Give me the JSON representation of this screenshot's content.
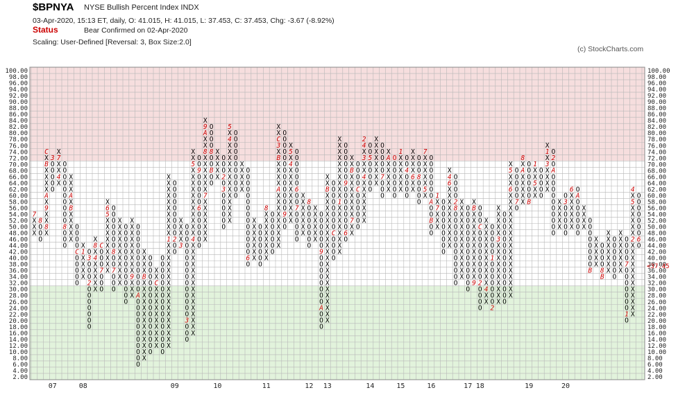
{
  "header": {
    "symbol": "$BPNYA",
    "name": "NYSE Bullish Percent Index  INDX",
    "ohlc_line": "03-Apr-2020, 15:13 ET, daily, O: 41.015, H: 41.015, L: 37.453, C: 37.453, Chg: -3.67 (-8.92%)",
    "status_label": "Status",
    "status_text": "Bear Confirmed on 02-Apr-2020",
    "scaling": "Scaling: User-Defined [Reversal: 3, Box Size:2.0]",
    "copyright": "(c) StockCharts.com"
  },
  "colors": {
    "upper_zone": "#f6dede",
    "middle_zone": "#ffffff",
    "lower_zone": "#e2f3dc",
    "grid": "#b7b7b7",
    "x_mark": "#000000",
    "o_mark": "#000000",
    "month_marker": "#cc0000",
    "last_price": "#cc0000"
  },
  "chart_data": {
    "type": "point_and_figure",
    "box_size": 2.0,
    "reversal": 3,
    "ylim": [
      2,
      100
    ],
    "y_ticks": [
      "100.00",
      "98.00",
      "96.00",
      "94.00",
      "92.00",
      "90.00",
      "88.00",
      "86.00",
      "84.00",
      "82.00",
      "80.00",
      "78.00",
      "76.00",
      "74.00",
      "72.00",
      "70.00",
      "68.00",
      "66.00",
      "64.00",
      "62.00",
      "60.00",
      "58.00",
      "56.00",
      "54.00",
      "52.00",
      "50.00",
      "48.00",
      "46.00",
      "44.00",
      "42.00",
      "40.00",
      "38.00",
      "36.00",
      "34.00",
      "32.00",
      "30.00",
      "28.00",
      "26.00",
      "24.00",
      "22.00",
      "20.00",
      "18.00",
      "16.00",
      "14.00",
      "12.00",
      "10.00",
      "8.00",
      "6.00",
      "4.00",
      "2.00"
    ],
    "zones": [
      {
        "from": 70,
        "to": 100,
        "color": "upper"
      },
      {
        "from": 30,
        "to": 70,
        "color": "middle"
      },
      {
        "from": 2,
        "to": 30,
        "color": "lower"
      }
    ],
    "last_value_label": "37.45",
    "last_value": 37.45,
    "x_labels": [
      {
        "label": "07",
        "col": 3
      },
      {
        "label": "08",
        "col": 8
      },
      {
        "label": "09",
        "col": 23
      },
      {
        "label": "10",
        "col": 30
      },
      {
        "label": "11",
        "col": 38
      },
      {
        "label": "12",
        "col": 45
      },
      {
        "label": "13",
        "col": 48
      },
      {
        "label": "14",
        "col": 55
      },
      {
        "label": "15",
        "col": 60
      },
      {
        "label": "16",
        "col": 65
      },
      {
        "label": "17",
        "col": 71
      },
      {
        "label": "18",
        "col": 73
      },
      {
        "label": "19",
        "col": 81
      },
      {
        "label": "20",
        "col": 87
      }
    ],
    "columns": [
      {
        "t": "X",
        "lo": 48,
        "hi": 54,
        "m": {
          "54": "7"
        }
      },
      {
        "t": "O",
        "lo": 46,
        "hi": 52,
        "m": {
          "52": "8"
        }
      },
      {
        "t": "X",
        "lo": 48,
        "hi": 74,
        "m": {
          "74": "C",
          "70": "B",
          "60": "A",
          "56": "9",
          "50": "8"
        }
      },
      {
        "t": "O",
        "lo": 62,
        "hi": 72,
        "m": {
          "72": "3"
        }
      },
      {
        "t": "X",
        "lo": 64,
        "hi": 74,
        "m": {
          "66": "4",
          "72": "7"
        }
      },
      {
        "t": "O",
        "lo": 44,
        "hi": 70,
        "m": {
          "50": "8"
        }
      },
      {
        "t": "X",
        "lo": 46,
        "hi": 66,
        "m": {
          "60": "A",
          "56": "B"
        }
      },
      {
        "t": "O",
        "lo": 32,
        "hi": 50,
        "m": {
          "42": "C"
        }
      },
      {
        "t": "X",
        "lo": 34,
        "hi": 44,
        "m": {
          "42": "1"
        }
      },
      {
        "t": "O",
        "lo": 18,
        "hi": 42,
        "m": {
          "32": "2",
          "40": "3"
        }
      },
      {
        "t": "X",
        "lo": 30,
        "hi": 46,
        "m": {
          "40": "4",
          "44": "8"
        }
      },
      {
        "t": "O",
        "lo": 30,
        "hi": 44,
        "m": {
          "36": "7",
          "44": "C"
        }
      },
      {
        "t": "X",
        "lo": 36,
        "hi": 58,
        "m": {
          "54": "5",
          "56": "6"
        }
      },
      {
        "t": "O",
        "lo": 30,
        "hi": 56,
        "m": {
          "42": "8",
          "36": "7"
        }
      },
      {
        "t": "X",
        "lo": 32,
        "hi": 52,
        "m": {}
      },
      {
        "t": "O",
        "lo": 26,
        "hi": 50,
        "m": {}
      },
      {
        "t": "X",
        "lo": 28,
        "hi": 52,
        "m": {
          "34": "9"
        }
      },
      {
        "t": "O",
        "lo": 6,
        "hi": 50,
        "m": {
          "28": "A"
        }
      },
      {
        "t": "X",
        "lo": 8,
        "hi": 42,
        "m": {
          "34": "B"
        }
      },
      {
        "t": "O",
        "lo": 10,
        "hi": 40,
        "m": {}
      },
      {
        "t": "X",
        "lo": 12,
        "hi": 36,
        "m": {
          "32": "C"
        }
      },
      {
        "t": "O",
        "lo": 10,
        "hi": 40,
        "m": {}
      },
      {
        "t": "X",
        "lo": 12,
        "hi": 66,
        "m": {
          "46": "1"
        }
      },
      {
        "t": "O",
        "lo": 42,
        "hi": 64,
        "m": {
          "46": "2"
        }
      },
      {
        "t": "X",
        "lo": 44,
        "hi": 52,
        "m": {
          "44": "3"
        }
      },
      {
        "t": "O",
        "lo": 14,
        "hi": 50,
        "m": {
          "20": "3"
        }
      },
      {
        "t": "X",
        "lo": 16,
        "hi": 74,
        "m": {
          "18": "X",
          "46": "4",
          "70": "5"
        }
      },
      {
        "t": "O",
        "lo": 44,
        "hi": 72,
        "m": {
          "56": "6",
          "68": "9"
        }
      },
      {
        "t": "X",
        "lo": 46,
        "hi": 84,
        "m": {
          "60": "7",
          "74": "8",
          "82": "9",
          "80": "A"
        }
      },
      {
        "t": "O",
        "lo": 64,
        "hi": 82,
        "m": {
          "74": "8",
          "68": "B"
        }
      },
      {
        "t": "X",
        "lo": 66,
        "hi": 74,
        "m": {}
      },
      {
        "t": "O",
        "lo": 50,
        "hi": 72,
        "m": {
          "62": "3",
          "66": "2"
        }
      },
      {
        "t": "X",
        "lo": 52,
        "hi": 82,
        "m": {
          "82": "5",
          "78": "4"
        }
      },
      {
        "t": "O",
        "lo": 60,
        "hi": 80,
        "m": {}
      },
      {
        "t": "X",
        "lo": 62,
        "hi": 70,
        "m": {}
      },
      {
        "t": "O",
        "lo": 38,
        "hi": 68,
        "m": {
          "40": "6"
        }
      },
      {
        "t": "X",
        "lo": 40,
        "hi": 52,
        "m": {}
      },
      {
        "t": "O",
        "lo": 38,
        "hi": 50,
        "m": {}
      },
      {
        "t": "X",
        "lo": 40,
        "hi": 56,
        "m": {
          "56": "8"
        }
      },
      {
        "t": "O",
        "lo": 42,
        "hi": 54,
        "m": {}
      },
      {
        "t": "X",
        "lo": 44,
        "hi": 82,
        "m": {
          "62": "A",
          "76": "3",
          "72": "B",
          "78": "C"
        }
      },
      {
        "t": "O",
        "lo": 50,
        "hi": 80,
        "m": {
          "54": "9"
        }
      },
      {
        "t": "X",
        "lo": 52,
        "hi": 76,
        "m": {
          "70": "4",
          "74": "5"
        }
      },
      {
        "t": "O",
        "lo": 46,
        "hi": 74,
        "m": {
          "62": "6",
          "56": "7"
        }
      },
      {
        "t": "X",
        "lo": 48,
        "hi": 60,
        "m": {}
      },
      {
        "t": "O",
        "lo": 44,
        "hi": 58,
        "m": {
          "58": "8"
        }
      },
      {
        "t": "X",
        "lo": 46,
        "hi": 56,
        "m": {}
      },
      {
        "t": "O",
        "lo": 18,
        "hi": 54,
        "m": {
          "24": "A",
          "42": "9"
        }
      },
      {
        "t": "X",
        "lo": 20,
        "hi": 66,
        "m": {
          "62": "B",
          "70": "2"
        }
      },
      {
        "t": "O",
        "lo": 40,
        "hi": 64,
        "m": {
          "48": "C"
        }
      },
      {
        "t": "X",
        "lo": 42,
        "hi": 78,
        "m": {
          "58": "1",
          "62": "X"
        }
      },
      {
        "t": "O",
        "lo": 46,
        "hi": 76,
        "m": {
          "48": "6",
          "64": "9"
        }
      },
      {
        "t": "X",
        "lo": 48,
        "hi": 72,
        "m": {
          "68": "B",
          "52": "7"
        }
      },
      {
        "t": "O",
        "lo": 50,
        "hi": 70,
        "m": {
          "62": "C"
        }
      },
      {
        "t": "X",
        "lo": 52,
        "hi": 78,
        "m": {
          "78": "2",
          "76": "4",
          "72": "3",
          "66": "4"
        }
      },
      {
        "t": "O",
        "lo": 62,
        "hi": 76,
        "m": {
          "72": "5"
        }
      },
      {
        "t": "X",
        "lo": 64,
        "hi": 78,
        "m": {}
      },
      {
        "t": "O",
        "lo": 60,
        "hi": 76,
        "m": {
          "66": "7"
        }
      },
      {
        "t": "X",
        "lo": 62,
        "hi": 74,
        "m": {
          "72": "A"
        }
      },
      {
        "t": "O",
        "lo": 60,
        "hi": 72,
        "m": {
          "72": "O"
        }
      },
      {
        "t": "X",
        "lo": 62,
        "hi": 74,
        "m": {
          "74": "1"
        }
      },
      {
        "t": "O",
        "lo": 60,
        "hi": 72,
        "m": {
          "68": "4"
        }
      },
      {
        "t": "X",
        "lo": 62,
        "hi": 74,
        "m": {
          "66": "6"
        }
      },
      {
        "t": "O",
        "lo": 58,
        "hi": 72,
        "m": {
          "66": "8"
        }
      },
      {
        "t": "X",
        "lo": 60,
        "hi": 74,
        "m": {
          "74": "7",
          "62": "5"
        }
      },
      {
        "t": "O",
        "lo": 48,
        "hi": 72,
        "m": {
          "58": "A",
          "52": "B"
        }
      },
      {
        "t": "X",
        "lo": 50,
        "hi": 60,
        "m": {
          "60": "1",
          "56": "7"
        }
      },
      {
        "t": "O",
        "lo": 42,
        "hi": 58,
        "m": {}
      },
      {
        "t": "X",
        "lo": 44,
        "hi": 68,
        "m": {
          "66": "4",
          "64": "6"
        }
      },
      {
        "t": "O",
        "lo": 32,
        "hi": 66,
        "m": {
          "58": "2",
          "56": "8"
        }
      },
      {
        "t": "X",
        "lo": 34,
        "hi": 58,
        "m": {}
      },
      {
        "t": "O",
        "lo": 30,
        "hi": 56,
        "m": {}
      },
      {
        "t": "X",
        "lo": 32,
        "hi": 58,
        "m": {
          "32": "9",
          "56": "B"
        }
      },
      {
        "t": "O",
        "lo": 24,
        "hi": 56,
        "m": {
          "32": "2",
          "50": "C"
        }
      },
      {
        "t": "X",
        "lo": 26,
        "hi": 52,
        "m": {
          "30": "4"
        }
      },
      {
        "t": "O",
        "lo": 24,
        "hi": 50,
        "m": {
          "24": "2",
          "40": "1"
        }
      },
      {
        "t": "X",
        "lo": 26,
        "hi": 56,
        "m": {
          "46": "3"
        }
      },
      {
        "t": "O",
        "lo": 26,
        "hi": 54,
        "m": {}
      },
      {
        "t": "X",
        "lo": 28,
        "hi": 70,
        "m": {
          "68": "5",
          "62": "6"
        }
      },
      {
        "t": "O",
        "lo": 56,
        "hi": 68,
        "m": {
          "58": "7"
        }
      },
      {
        "t": "X",
        "lo": 58,
        "hi": 72,
        "m": {
          "72": "8",
          "68": "A"
        }
      },
      {
        "t": "O",
        "lo": 58,
        "hi": 70,
        "m": {
          "58": "B"
        }
      },
      {
        "t": "X",
        "lo": 60,
        "hi": 70,
        "m": {
          "70": "1",
          "64": "5"
        }
      },
      {
        "t": "O",
        "lo": 60,
        "hi": 68,
        "m": {
          "70": "3"
        }
      },
      {
        "t": "X",
        "lo": 62,
        "hi": 76,
        "m": {
          "74": "1",
          "70": "3"
        }
      },
      {
        "t": "O",
        "lo": 48,
        "hi": 74,
        "m": {
          "72": "2",
          "68": "A"
        }
      },
      {
        "t": "X",
        "lo": 50,
        "hi": 58,
        "m": {
          "64": "9"
        }
      },
      {
        "t": "O",
        "lo": 48,
        "hi": 60,
        "m": {
          "58": "3"
        }
      },
      {
        "t": "X",
        "lo": 50,
        "hi": 62,
        "m": {
          "62": "6"
        }
      },
      {
        "t": "O",
        "lo": 48,
        "hi": 62,
        "m": {
          "60": "A"
        }
      },
      {
        "t": "X",
        "lo": 50,
        "hi": 56,
        "m": {}
      },
      {
        "t": "O",
        "lo": 36,
        "hi": 52,
        "m": {
          "36": "B"
        }
      },
      {
        "t": "X",
        "lo": 38,
        "hi": 46,
        "m": {}
      },
      {
        "t": "O",
        "lo": 34,
        "hi": 44,
        "m": {
          "36": "8",
          "34": "B"
        }
      },
      {
        "t": "X",
        "lo": 36,
        "hi": 48,
        "m": {}
      },
      {
        "t": "O",
        "lo": 34,
        "hi": 46,
        "m": {}
      },
      {
        "t": "X",
        "lo": 36,
        "hi": 48,
        "m": {}
      },
      {
        "t": "O",
        "lo": 20,
        "hi": 46,
        "m": {
          "22": "1",
          "38": "7"
        }
      },
      {
        "t": "X",
        "lo": 22,
        "hi": 62,
        "m": {
          "62": "4",
          "58": "5",
          "46": "2"
        }
      },
      {
        "t": "O",
        "lo": 44,
        "hi": 60,
        "m": {
          "46": "6"
        }
      },
      {
        "t": "X",
        "lo": 46,
        "hi": 58,
        "m": {
          "58": "7"
        }
      },
      {
        "t": "O",
        "lo": 46,
        "hi": 56,
        "m": {}
      },
      {
        "t": "X",
        "lo": 48,
        "hi": 56,
        "m": {
          "56": "8"
        }
      },
      {
        "t": "O",
        "lo": 44,
        "hi": 56,
        "m": {
          "44": "9"
        }
      },
      {
        "t": "X",
        "lo": 46,
        "hi": 56,
        "m": {
          "56": "X",
          "52": "A"
        }
      },
      {
        "t": "O",
        "lo": 48,
        "hi": 54,
        "m": {
          "48": "C"
        }
      },
      {
        "t": "X",
        "lo": 50,
        "hi": 68,
        "m": {
          "68": "1",
          "62": "C",
          "58": "B"
        }
      },
      {
        "t": "O",
        "lo": 8,
        "hi": 66,
        "m": {
          "66": "2",
          "28": "3"
        }
      },
      {
        "t": "X",
        "lo": 10,
        "hi": 52,
        "m": {
          "24": "X"
        }
      },
      {
        "t": "O",
        "lo": 36,
        "hi": 50,
        "m": {
          "52": "4",
          "40": "O",
          "38": "O"
        }
      }
    ]
  }
}
